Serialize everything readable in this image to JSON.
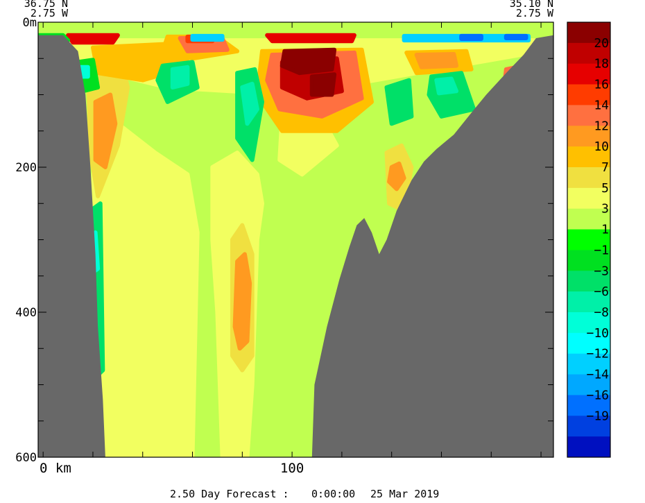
{
  "chart_data": {
    "type": "heatmap",
    "title": "",
    "corner_left": {
      "lat": "36.75 N",
      "lon": "2.75 W"
    },
    "corner_right": {
      "lat": "35.10 N",
      "lon": "2.75 W"
    },
    "y_axis": {
      "ylim": [
        0,
        600
      ],
      "inverted": true,
      "major_ticks": [
        {
          "value": 0,
          "label": "0m"
        },
        {
          "value": 200,
          "label": "200"
        },
        {
          "value": 400,
          "label": "400"
        },
        {
          "value": 600,
          "label": "600"
        }
      ],
      "minor_step": 50
    },
    "x_axis": {
      "xlim": [
        -2,
        205
      ],
      "major_ticks": [
        {
          "value": 0,
          "label": "0 km"
        },
        {
          "value": 100,
          "label": "100"
        }
      ],
      "minor_step": 20
    },
    "colorbar": {
      "labels": [
        "20",
        "18",
        "16",
        "14",
        "12",
        "10",
        "7",
        "5",
        "3",
        "1",
        "−1",
        "−3",
        "−6",
        "−8",
        "−10",
        "−12",
        "−14",
        "−16",
        "−19"
      ],
      "colors": [
        "#8b0000",
        "#c00000",
        "#e60000",
        "#ff3c00",
        "#ff7040",
        "#ff9a20",
        "#ffc000",
        "#f0e040",
        "#f2ff60",
        "#c0ff50",
        "#00ff00",
        "#00e020",
        "#00e068",
        "#00f0a8",
        "#00ffd8",
        "#00ffff",
        "#00d0ff",
        "#00a8ff",
        "#0070ff",
        "#0040e0",
        "#0010c0"
      ]
    },
    "land_color": "#686868",
    "bottom_profile": [
      [
        -2,
        18
      ],
      [
        8,
        18
      ],
      [
        14,
        40
      ],
      [
        17,
        100
      ],
      [
        19,
        200
      ],
      [
        21,
        320
      ],
      [
        22,
        420
      ],
      [
        24,
        520
      ],
      [
        25,
        600
      ],
      [
        108,
        600
      ],
      [
        109,
        500
      ],
      [
        114,
        420
      ],
      [
        119,
        355
      ],
      [
        123,
        310
      ],
      [
        126,
        280
      ],
      [
        129,
        270
      ],
      [
        132,
        290
      ],
      [
        135,
        320
      ],
      [
        138,
        300
      ],
      [
        142,
        260
      ],
      [
        148,
        218
      ],
      [
        153,
        192
      ],
      [
        158,
        175
      ],
      [
        165,
        155
      ],
      [
        172,
        125
      ],
      [
        178,
        100
      ],
      [
        186,
        70
      ],
      [
        193,
        45
      ],
      [
        198,
        22
      ],
      [
        205,
        18
      ]
    ],
    "background_value": 1,
    "regions": [
      {
        "value": 3,
        "points": [
          [
            21,
            160
          ],
          [
            30,
            140
          ],
          [
            45,
            180
          ],
          [
            58,
            210
          ],
          [
            62,
            290
          ],
          [
            60,
            600
          ],
          [
            24,
            600
          ],
          [
            22,
            400
          ],
          [
            20,
            220
          ]
        ]
      },
      {
        "value": 3,
        "points": [
          [
            68,
            200
          ],
          [
            78,
            180
          ],
          [
            86,
            210
          ],
          [
            88,
            250
          ],
          [
            86,
            300
          ],
          [
            84,
            500
          ],
          [
            82,
            600
          ],
          [
            72,
            600
          ],
          [
            70,
            400
          ],
          [
            68,
            300
          ]
        ]
      },
      {
        "value": 3,
        "points": [
          [
            96,
            130
          ],
          [
            110,
            120
          ],
          [
            118,
            170
          ],
          [
            104,
            210
          ],
          [
            95,
            190
          ]
        ]
      },
      {
        "value": 5,
        "points": [
          [
            76,
            300
          ],
          [
            80,
            280
          ],
          [
            84,
            320
          ],
          [
            84,
            460
          ],
          [
            80,
            480
          ],
          [
            76,
            460
          ]
        ]
      },
      {
        "value": 10,
        "points": [
          [
            78,
            330
          ],
          [
            81,
            320
          ],
          [
            83,
            360
          ],
          [
            82,
            440
          ],
          [
            79,
            450
          ],
          [
            77,
            420
          ]
        ]
      },
      {
        "value": 5,
        "points": [
          [
            138,
            180
          ],
          [
            144,
            170
          ],
          [
            148,
            200
          ],
          [
            145,
            260
          ],
          [
            139,
            250
          ]
        ]
      },
      {
        "value": 10,
        "points": [
          [
            140,
            200
          ],
          [
            143,
            195
          ],
          [
            145,
            215
          ],
          [
            142,
            230
          ],
          [
            139,
            220
          ]
        ]
      },
      {
        "value": 5,
        "points": [
          [
            18,
            60
          ],
          [
            32,
            60
          ],
          [
            34,
            90
          ],
          [
            30,
            170
          ],
          [
            22,
            240
          ],
          [
            19,
            180
          ]
        ]
      },
      {
        "value": 10,
        "points": [
          [
            21,
            110
          ],
          [
            27,
            100
          ],
          [
            29,
            140
          ],
          [
            25,
            200
          ],
          [
            21,
            190
          ]
        ]
      },
      {
        "value": 3,
        "points": [
          [
            10,
            25
          ],
          [
            200,
            25
          ],
          [
            200,
            40
          ],
          [
            150,
            70
          ],
          [
            100,
            100
          ],
          [
            50,
            90
          ],
          [
            14,
            60
          ]
        ]
      },
      {
        "value": 7,
        "points": [
          [
            20,
            35
          ],
          [
            50,
            30
          ],
          [
            60,
            60
          ],
          [
            40,
            80
          ],
          [
            22,
            70
          ]
        ]
      },
      {
        "value": 7,
        "points": [
          [
            88,
            40
          ],
          [
            128,
            38
          ],
          [
            132,
            110
          ],
          [
            118,
            150
          ],
          [
            96,
            150
          ],
          [
            86,
            100
          ]
        ]
      },
      {
        "value": 12,
        "points": [
          [
            92,
            45
          ],
          [
            125,
            42
          ],
          [
            128,
            105
          ],
          [
            112,
            130
          ],
          [
            95,
            120
          ],
          [
            90,
            80
          ]
        ]
      },
      {
        "value": 18,
        "points": [
          [
            96,
            55
          ],
          [
            118,
            50
          ],
          [
            120,
            95
          ],
          [
            106,
            105
          ],
          [
            96,
            90
          ]
        ]
      },
      {
        "value": 20,
        "points": [
          [
            97,
            40
          ],
          [
            117,
            38
          ],
          [
            116,
            65
          ],
          [
            103,
            70
          ],
          [
            96,
            60
          ]
        ]
      },
      {
        "value": 20,
        "points": [
          [
            108,
            75
          ],
          [
            117,
            72
          ],
          [
            116,
            100
          ],
          [
            108,
            100
          ]
        ]
      },
      {
        "value": 7,
        "points": [
          [
            50,
            20
          ],
          [
            70,
            20
          ],
          [
            78,
            40
          ],
          [
            60,
            50
          ],
          [
            48,
            40
          ]
        ]
      },
      {
        "value": 12,
        "points": [
          [
            55,
            22
          ],
          [
            72,
            22
          ],
          [
            74,
            38
          ],
          [
            58,
            40
          ]
        ]
      },
      {
        "value": 7,
        "points": [
          [
            146,
            42
          ],
          [
            170,
            40
          ],
          [
            172,
            65
          ],
          [
            150,
            70
          ]
        ]
      },
      {
        "value": 10,
        "points": [
          [
            150,
            45
          ],
          [
            165,
            44
          ],
          [
            166,
            60
          ],
          [
            152,
            62
          ]
        ]
      },
      {
        "value": 12,
        "points": [
          [
            186,
            65
          ],
          [
            193,
            60
          ],
          [
            190,
            90
          ],
          [
            185,
            95
          ]
        ]
      },
      {
        "value": 16,
        "points": [
          [
            10,
            18
          ],
          [
            30,
            18
          ],
          [
            28,
            28
          ],
          [
            12,
            28
          ]
        ]
      },
      {
        "value": 14,
        "points": [
          [
            58,
            20
          ],
          [
            68,
            20
          ],
          [
            68,
            26
          ],
          [
            58,
            26
          ]
        ]
      },
      {
        "value": 16,
        "points": [
          [
            90,
            18
          ],
          [
            125,
            18
          ],
          [
            124,
            26
          ],
          [
            92,
            26
          ]
        ]
      },
      {
        "value": -6,
        "points": [
          [
            78,
            70
          ],
          [
            85,
            65
          ],
          [
            88,
            110
          ],
          [
            84,
            190
          ],
          [
            78,
            160
          ]
        ]
      },
      {
        "value": -8,
        "points": [
          [
            80,
            90
          ],
          [
            84,
            85
          ],
          [
            86,
            120
          ],
          [
            82,
            140
          ]
        ]
      },
      {
        "value": -6,
        "points": [
          [
            48,
            60
          ],
          [
            60,
            55
          ],
          [
            62,
            90
          ],
          [
            50,
            110
          ],
          [
            46,
            80
          ]
        ]
      },
      {
        "value": -8,
        "points": [
          [
            52,
            65
          ],
          [
            58,
            62
          ],
          [
            58,
            85
          ],
          [
            52,
            90
          ]
        ]
      },
      {
        "value": -6,
        "points": [
          [
            138,
            90
          ],
          [
            147,
            80
          ],
          [
            148,
            130
          ],
          [
            140,
            140
          ]
        ]
      },
      {
        "value": -6,
        "points": [
          [
            156,
            75
          ],
          [
            168,
            70
          ],
          [
            173,
            120
          ],
          [
            160,
            130
          ],
          [
            155,
            100
          ]
        ]
      },
      {
        "value": -8,
        "points": [
          [
            158,
            80
          ],
          [
            164,
            78
          ],
          [
            166,
            95
          ],
          [
            159,
            98
          ]
        ]
      },
      {
        "value": -3,
        "points": [
          [
            14,
            55
          ],
          [
            20,
            52
          ],
          [
            22,
            90
          ],
          [
            16,
            95
          ]
        ]
      },
      {
        "value": -10,
        "points": [
          [
            14,
            62
          ],
          [
            18,
            62
          ],
          [
            18,
            75
          ],
          [
            14,
            75
          ]
        ]
      },
      {
        "value": -6,
        "points": [
          [
            19,
            260
          ],
          [
            23,
            250
          ],
          [
            24,
            480
          ],
          [
            21,
            490
          ],
          [
            19,
            400
          ]
        ]
      },
      {
        "value": -10,
        "points": [
          [
            19,
            300
          ],
          [
            21,
            290
          ],
          [
            22,
            340
          ],
          [
            20,
            345
          ]
        ]
      },
      {
        "value": -3,
        "points": [
          [
            -2,
            18
          ],
          [
            8,
            18
          ],
          [
            10,
            25
          ],
          [
            -2,
            25
          ]
        ]
      },
      {
        "value": -14,
        "points": [
          [
            60,
            19
          ],
          [
            72,
            19
          ],
          [
            72,
            24
          ],
          [
            60,
            24
          ]
        ]
      },
      {
        "value": -14,
        "points": [
          [
            145,
            19
          ],
          [
            195,
            19
          ],
          [
            195,
            25
          ],
          [
            145,
            25
          ]
        ]
      },
      {
        "value": -19,
        "points": [
          [
            168,
            19
          ],
          [
            176,
            19
          ],
          [
            176,
            23
          ],
          [
            168,
            23
          ]
        ]
      },
      {
        "value": -19,
        "points": [
          [
            186,
            19
          ],
          [
            194,
            19
          ],
          [
            194,
            22
          ],
          [
            186,
            22
          ]
        ]
      }
    ]
  },
  "footer": {
    "forecast_label": "2.50 Day Forecast :",
    "time": "0:00:00",
    "date": "25 Mar 2019"
  }
}
